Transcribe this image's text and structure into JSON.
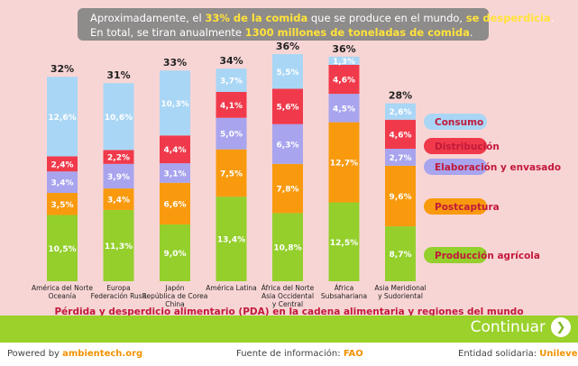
{
  "header": {
    "line1": {
      "pre": "Aproximadamente, el ",
      "hl1": "33% de la comida",
      "mid": " que se produce en el mundo, ",
      "hl2": "se desperdicia",
      "post": "."
    },
    "line2": {
      "pre": "En total,  se tiran  anualmente ",
      "hl1": "1300 millones de toneladas de comida",
      "post": "."
    }
  },
  "chart_data": {
    "type": "bar",
    "stacked": true,
    "categories": [
      [
        "América del Norte",
        "Oceanía"
      ],
      [
        "Europa",
        "Federación Rusa"
      ],
      [
        "Japón",
        "República de Corea",
        "China"
      ],
      [
        "América Latina"
      ],
      [
        "África del Norte",
        "Asia Occidental",
        "y Central"
      ],
      [
        "África",
        "Subsahariana"
      ],
      [
        "Asia Meridional",
        "y Sudoriental"
      ]
    ],
    "totals": [
      "32%",
      "31%",
      "33%",
      "34%",
      "36%",
      "36%",
      "28%"
    ],
    "series": [
      {
        "name": "Producción agrícola",
        "color": "#94cf2c",
        "values": [
          10.5,
          11.3,
          9.0,
          13.4,
          10.8,
          12.5,
          8.7
        ],
        "labels": [
          "10,5%",
          "11,3%",
          "9,0%",
          "13,4%",
          "10,8%",
          "12,5%",
          "8,7%"
        ]
      },
      {
        "name": "Postcaptura",
        "color": "#f99a0e",
        "values": [
          3.5,
          3.4,
          6.6,
          7.5,
          7.8,
          12.7,
          9.6
        ],
        "labels": [
          "3,5%",
          "3,4%",
          "6,6%",
          "7,5%",
          "7,8%",
          "12,7%",
          "9,6%"
        ]
      },
      {
        "name": "Elaboración y envasado",
        "color": "#a8a4ee",
        "values": [
          3.4,
          3.9,
          3.1,
          5.0,
          6.3,
          4.5,
          2.7
        ],
        "labels": [
          "3,4%",
          "3,9%",
          "3,1%",
          "5,0%",
          "6,3%",
          "4,5%",
          "2,7%"
        ]
      },
      {
        "name": "Distribución",
        "color": "#f03a4b",
        "values": [
          2.4,
          2.2,
          4.4,
          4.1,
          5.6,
          4.6,
          4.6
        ],
        "labels": [
          "2,4%",
          "2,2%",
          "4,4%",
          "4,1%",
          "5,6%",
          "4,6%",
          "4,6%"
        ]
      },
      {
        "name": "Consumo",
        "color": "#a9d6f5",
        "values": [
          12.6,
          10.6,
          10.3,
          3.7,
          5.5,
          1.3,
          2.6
        ],
        "labels": [
          "12,6%",
          "10,6%",
          "10,3%",
          "3,7%",
          "5,5%",
          "1,3%",
          "2,6%"
        ]
      }
    ],
    "legend_order": [
      "Consumo",
      "Distribución",
      "Elaboración y envasado",
      "Postcaptura",
      "Producción agrícola"
    ],
    "subtitle": "Pérdida y desperdicio alimentario (PDA) en la cadena alimentaria y regiones del mundo",
    "legend_position": "right",
    "grid": false
  },
  "navigation": {
    "continue_label": "Continuar",
    "continue_icon": "chevron-right-icon"
  },
  "footer": {
    "powered_label": "Powered by ",
    "powered_value": "ambientech.org",
    "source_label": "Fuente de información: ",
    "source_value": "FAO",
    "entity_label": "Entidad solidaria: ",
    "entity_value": "Unilever"
  },
  "colors": {
    "panel_bg": "#f8d5d5",
    "header_bg": "#8e8b8b",
    "highlight": "#ffe33a",
    "accent_green": "#9ad12a",
    "subtitle_color": "#c2193a",
    "footer_highlight": "#f29100"
  }
}
